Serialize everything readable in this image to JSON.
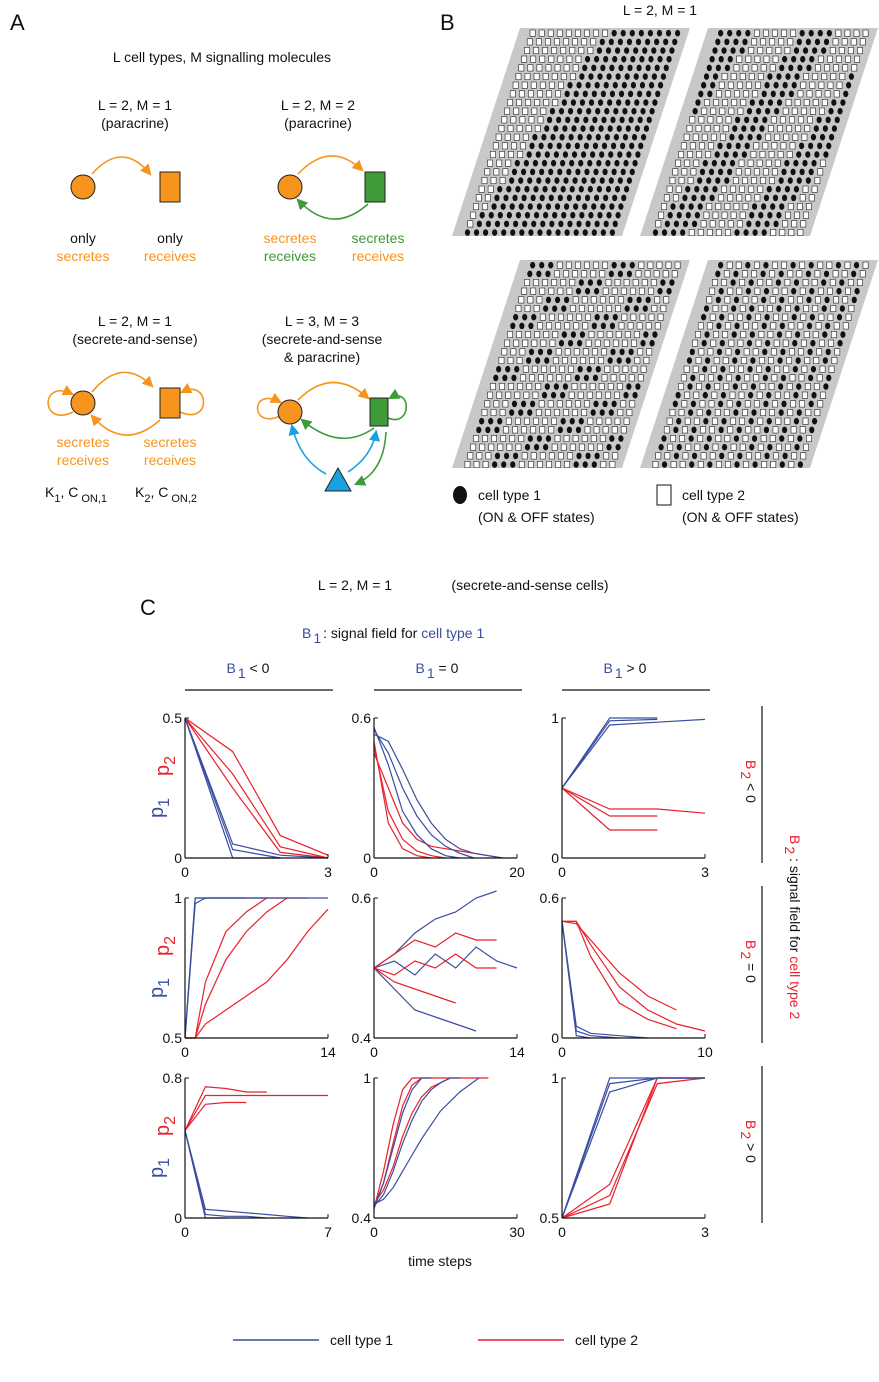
{
  "panel_a": {
    "label": "A",
    "heading": "L cell types, M signalling molecules",
    "diagrams": [
      {
        "title": "L = 2, M = 1",
        "subtitle": [
          "(paracrine)"
        ],
        "left": [
          "only",
          "secretes"
        ],
        "right": [
          "only",
          "receives"
        ]
      },
      {
        "title": "L = 2, M = 2",
        "subtitle": [
          "(paracrine)"
        ],
        "left": [
          "secretes",
          "receives"
        ],
        "right": [
          "secretes",
          "receives"
        ]
      },
      {
        "title": "L = 2, M = 1",
        "subtitle": [
          "(secrete-and-sense)"
        ],
        "left": [
          "secretes",
          "receives"
        ],
        "right": [
          "secretes",
          "receives"
        ],
        "left_params": {
          "k": "K",
          "k_sub": "1",
          "c": ", C",
          "c_sub": "ON,1"
        },
        "right_params": {
          "k": "K",
          "k_sub": "2",
          "c": ", C",
          "c_sub": "ON,2"
        }
      },
      {
        "title": "L = 3, M = 3",
        "subtitle": [
          "(secrete-and-sense",
          "& paracrine)"
        ]
      }
    ]
  },
  "panel_b": {
    "label": "B",
    "title": "L = 2, M = 1",
    "legend": [
      {
        "name": "cell type 1",
        "note": "(ON & OFF states)"
      },
      {
        "name": "cell type 2",
        "note": "(ON & OFF states)"
      }
    ]
  },
  "panel_c": {
    "label": "C",
    "title": "L = 2, M = 1",
    "subtitle": "(secrete-and-sense cells)",
    "b1_note": {
      "symbol": "B",
      "sub": "1",
      "text": ": signal field for ",
      "target": "cell type 1"
    },
    "b2_note": {
      "symbol": "B",
      "sub": "2",
      "text": ": signal field for ",
      "target": "cell type 2"
    },
    "columns": [
      {
        "symbol": "B",
        "sub": "1",
        "rel": " < 0"
      },
      {
        "symbol": "B",
        "sub": "1",
        "rel": " = 0"
      },
      {
        "symbol": "B",
        "sub": "1",
        "rel": " > 0"
      }
    ],
    "rows": [
      {
        "symbol": "B",
        "sub": "2",
        "rel": " < 0"
      },
      {
        "symbol": "B",
        "sub": "2",
        "rel": " = 0"
      },
      {
        "symbol": "B",
        "sub": "2",
        "rel": " > 0"
      }
    ],
    "y_label": [
      {
        "symbol": "p",
        "sub": "1"
      },
      {
        "symbol": "p",
        "sub": "2"
      }
    ],
    "x_label": "time steps",
    "legend": [
      {
        "name": "cell type 1",
        "color": "#3a4da0"
      },
      {
        "name": "cell type 2",
        "color": "#e8212b"
      }
    ],
    "plots": [
      {
        "type": "line",
        "xlim": [
          0,
          3
        ],
        "xticks": [
          0,
          3
        ],
        "ylim": [
          0,
          0.5
        ],
        "yticks": [
          0,
          0.5
        ],
        "x": [
          0,
          1,
          2,
          3
        ],
        "series": [
          {
            "color": "#e8212b",
            "values": [
              0.5,
              0.3,
              0.04,
              0.0
            ]
          },
          {
            "color": "#e8212b",
            "values": [
              0.5,
              0.38,
              0.08,
              0.01
            ]
          },
          {
            "color": "#e8212b",
            "values": [
              0.5,
              0.25,
              0.02,
              0.0
            ]
          },
          {
            "color": "#3a4da0",
            "values": [
              0.5,
              0.03,
              0.0,
              null
            ]
          },
          {
            "color": "#3a4da0",
            "values": [
              0.5,
              0.0,
              0.0,
              null
            ]
          },
          {
            "color": "#3a4da0",
            "values": [
              0.5,
              0.05,
              0.01,
              0.0
            ]
          }
        ]
      },
      {
        "type": "line",
        "xlim": [
          0,
          20
        ],
        "xticks": [
          0,
          20
        ],
        "ylim": [
          0,
          0.6
        ],
        "yticks": [
          0,
          0.6
        ],
        "x": [
          0,
          2,
          4,
          6,
          8,
          10,
          12,
          14,
          16,
          18,
          20
        ],
        "series": [
          {
            "color": "#e8212b",
            "values": [
              0.48,
              0.2,
              0.08,
              0.03,
              0.01,
              0,
              null,
              null,
              null,
              null,
              null
            ]
          },
          {
            "color": "#e8212b",
            "values": [
              0.45,
              0.3,
              0.15,
              0.08,
              0.05,
              0.04,
              0.03,
              0.02,
              0.01,
              0.0,
              null
            ]
          },
          {
            "color": "#e8212b",
            "values": [
              0.5,
              0.15,
              0.04,
              0.01,
              0,
              null,
              null,
              null,
              null,
              null,
              null
            ]
          },
          {
            "color": "#3a4da0",
            "values": [
              0.55,
              0.45,
              0.3,
              0.18,
              0.1,
              0.05,
              0.02,
              0,
              null,
              null,
              null
            ]
          },
          {
            "color": "#3a4da0",
            "values": [
              0.53,
              0.5,
              0.38,
              0.25,
              0.15,
              0.08,
              0.04,
              0.02,
              0.01,
              0,
              null
            ]
          },
          {
            "color": "#3a4da0",
            "values": [
              0.56,
              0.4,
              0.2,
              0.1,
              0.04,
              0.01,
              0,
              null,
              null,
              null,
              null
            ]
          }
        ]
      },
      {
        "type": "line",
        "xlim": [
          0,
          3
        ],
        "xticks": [
          0,
          3
        ],
        "ylim": [
          0,
          1
        ],
        "yticks": [
          0,
          1
        ],
        "x": [
          0,
          1,
          2,
          3
        ],
        "series": [
          {
            "color": "#e8212b",
            "values": [
              0.5,
              0.3,
              0.3,
              null
            ]
          },
          {
            "color": "#e8212b",
            "values": [
              0.5,
              0.2,
              0.2,
              null
            ]
          },
          {
            "color": "#e8212b",
            "values": [
              0.5,
              0.35,
              0.35,
              0.32
            ]
          },
          {
            "color": "#3a4da0",
            "values": [
              0.5,
              0.98,
              0.99,
              null
            ]
          },
          {
            "color": "#3a4da0",
            "values": [
              0.5,
              0.95,
              0.97,
              0.99
            ]
          },
          {
            "color": "#3a4da0",
            "values": [
              0.5,
              1,
              1,
              null
            ]
          }
        ]
      },
      {
        "type": "line",
        "xlim": [
          0,
          14
        ],
        "xticks": [
          0,
          14
        ],
        "ylim": [
          0.5,
          1
        ],
        "yticks": [
          0.5,
          1
        ],
        "x": [
          0,
          1,
          2,
          4,
          6,
          8,
          10,
          12,
          14
        ],
        "series": [
          {
            "color": "#e8212b",
            "values": [
              0.5,
              0.5,
              0.7,
              0.88,
              0.95,
              1,
              1,
              1,
              null
            ]
          },
          {
            "color": "#e8212b",
            "values": [
              0.5,
              0.5,
              0.62,
              0.78,
              0.88,
              0.95,
              1,
              null,
              null
            ]
          },
          {
            "color": "#e8212b",
            "values": [
              0.5,
              0.5,
              0.55,
              0.6,
              0.65,
              0.7,
              0.78,
              0.88,
              0.96
            ]
          },
          {
            "color": "#3a4da0",
            "values": [
              0.5,
              1,
              1,
              1,
              1,
              1,
              null,
              null,
              null
            ]
          },
          {
            "color": "#3a4da0",
            "values": [
              0.5,
              0.98,
              1,
              1,
              1,
              1,
              1,
              1,
              1
            ]
          },
          {
            "color": "#3a4da0",
            "values": [
              0.5,
              1,
              1,
              1,
              1,
              null,
              null,
              null,
              null
            ]
          }
        ]
      },
      {
        "type": "line",
        "xlim": [
          0,
          14
        ],
        "xticks": [
          0,
          14
        ],
        "ylim": [
          0.4,
          0.6
        ],
        "yticks": [
          0.4,
          0.6
        ],
        "x": [
          0,
          2,
          4,
          6,
          8,
          10,
          12,
          14
        ],
        "series": [
          {
            "color": "#3a4da0",
            "values": [
              0.5,
              0.52,
              0.55,
              0.57,
              0.58,
              0.6,
              0.61,
              null
            ]
          },
          {
            "color": "#3a4da0",
            "values": [
              0.5,
              0.47,
              0.44,
              0.43,
              0.42,
              0.41,
              null,
              null
            ]
          },
          {
            "color": "#3a4da0",
            "values": [
              0.5,
              0.51,
              0.49,
              0.52,
              0.5,
              0.53,
              0.51,
              0.5
            ]
          },
          {
            "color": "#e8212b",
            "values": [
              0.5,
              0.52,
              0.54,
              0.53,
              0.55,
              0.54,
              0.54,
              null
            ]
          },
          {
            "color": "#e8212b",
            "values": [
              0.5,
              0.48,
              0.47,
              0.46,
              0.45,
              null,
              null,
              null
            ]
          },
          {
            "color": "#e8212b",
            "values": [
              0.5,
              0.49,
              0.51,
              0.5,
              0.52,
              0.5,
              0.5,
              null
            ]
          }
        ]
      },
      {
        "type": "line",
        "xlim": [
          0,
          10
        ],
        "xticks": [
          0,
          10
        ],
        "ylim": [
          0,
          0.6
        ],
        "yticks": [
          0,
          0.6
        ],
        "x": [
          0,
          1,
          2,
          4,
          6,
          8,
          10
        ],
        "series": [
          {
            "color": "#e8212b",
            "values": [
              0.5,
              0.5,
              0.4,
              0.22,
              0.12,
              0.06,
              0.03
            ]
          },
          {
            "color": "#e8212b",
            "values": [
              0.5,
              0.5,
              0.35,
              0.15,
              0.08,
              0.04,
              null
            ]
          },
          {
            "color": "#e8212b",
            "values": [
              0.5,
              0.49,
              0.42,
              0.28,
              0.18,
              0.12,
              null
            ]
          },
          {
            "color": "#3a4da0",
            "values": [
              0.5,
              0.03,
              0.01,
              0,
              null,
              null,
              null
            ]
          },
          {
            "color": "#3a4da0",
            "values": [
              0.5,
              0.05,
              0.02,
              0.01,
              0,
              null,
              null
            ]
          },
          {
            "color": "#3a4da0",
            "values": [
              0.5,
              0.01,
              0,
              null,
              null,
              null,
              null
            ]
          }
        ]
      },
      {
        "type": "line",
        "xlim": [
          0,
          7
        ],
        "xticks": [
          0,
          7
        ],
        "ylim": [
          0,
          0.8
        ],
        "yticks": [
          0,
          0.8
        ],
        "x": [
          0,
          1,
          2,
          3,
          4,
          5,
          6,
          7
        ],
        "series": [
          {
            "color": "#e8212b",
            "values": [
              0.5,
              0.7,
              0.7,
              0.7,
              0.7,
              0.7,
              0.7,
              0.7
            ]
          },
          {
            "color": "#e8212b",
            "values": [
              0.5,
              0.75,
              0.74,
              0.72,
              0.72,
              null,
              null,
              null
            ]
          },
          {
            "color": "#e8212b",
            "values": [
              0.5,
              0.65,
              0.66,
              0.66,
              null,
              null,
              null,
              null
            ]
          },
          {
            "color": "#3a4da0",
            "values": [
              0.5,
              0.02,
              0.01,
              0.01,
              0,
              null,
              null,
              null
            ]
          },
          {
            "color": "#3a4da0",
            "values": [
              0.5,
              0.05,
              0.04,
              0.03,
              0.02,
              0.01,
              0,
              null
            ]
          },
          {
            "color": "#3a4da0",
            "values": [
              0.5,
              0,
              0,
              null,
              null,
              null,
              null,
              null
            ]
          }
        ]
      },
      {
        "type": "line",
        "xlim": [
          0,
          30
        ],
        "xticks": [
          0,
          30
        ],
        "ylim": [
          0.4,
          1
        ],
        "yticks": [
          0.4,
          1
        ],
        "x": [
          0,
          2,
          4,
          6,
          8,
          10,
          12,
          14,
          16,
          18,
          20,
          22,
          24,
          26,
          28,
          30
        ],
        "series": [
          {
            "color": "#e8212b",
            "values": [
              0.45,
              0.55,
              0.72,
              0.88,
              0.97,
              1,
              1,
              1,
              1,
              null,
              null,
              null,
              null,
              null,
              null,
              null
            ]
          },
          {
            "color": "#e8212b",
            "values": [
              0.46,
              0.52,
              0.62,
              0.75,
              0.85,
              0.92,
              0.96,
              0.98,
              1,
              1,
              1,
              1,
              1,
              null,
              null,
              null
            ]
          },
          {
            "color": "#e8212b",
            "values": [
              0.44,
              0.6,
              0.8,
              0.95,
              1,
              1,
              null,
              null,
              null,
              null,
              null,
              null,
              null,
              null,
              null,
              null
            ]
          },
          {
            "color": "#3a4da0",
            "values": [
              0.45,
              0.5,
              0.6,
              0.72,
              0.82,
              0.9,
              0.95,
              0.98,
              1,
              1,
              null,
              null,
              null,
              null,
              null,
              null
            ]
          },
          {
            "color": "#3a4da0",
            "values": [
              0.46,
              0.48,
              0.53,
              0.6,
              0.67,
              0.74,
              0.8,
              0.86,
              0.9,
              0.94,
              0.97,
              1,
              null,
              null,
              null,
              null
            ]
          },
          {
            "color": "#3a4da0",
            "values": [
              0.44,
              0.55,
              0.7,
              0.85,
              0.95,
              1,
              1,
              null,
              null,
              null,
              null,
              null,
              null,
              null,
              null,
              null
            ]
          }
        ]
      },
      {
        "type": "line",
        "xlim": [
          0,
          3
        ],
        "xticks": [
          0,
          3
        ],
        "ylim": [
          0.5,
          1
        ],
        "yticks": [
          0.5,
          1
        ],
        "x": [
          0,
          1,
          2,
          3
        ],
        "series": [
          {
            "color": "#e8212b",
            "values": [
              0.5,
              0.55,
              1,
              1
            ]
          },
          {
            "color": "#e8212b",
            "values": [
              0.5,
              0.62,
              1,
              1
            ]
          },
          {
            "color": "#e8212b",
            "values": [
              0.5,
              0.58,
              0.98,
              1
            ]
          },
          {
            "color": "#3a4da0",
            "values": [
              0.5,
              1,
              1,
              1
            ]
          },
          {
            "color": "#3a4da0",
            "values": [
              0.5,
              0.98,
              1,
              null
            ]
          },
          {
            "color": "#3a4da0",
            "values": [
              0.5,
              0.95,
              1,
              1
            ]
          }
        ]
      }
    ]
  }
}
